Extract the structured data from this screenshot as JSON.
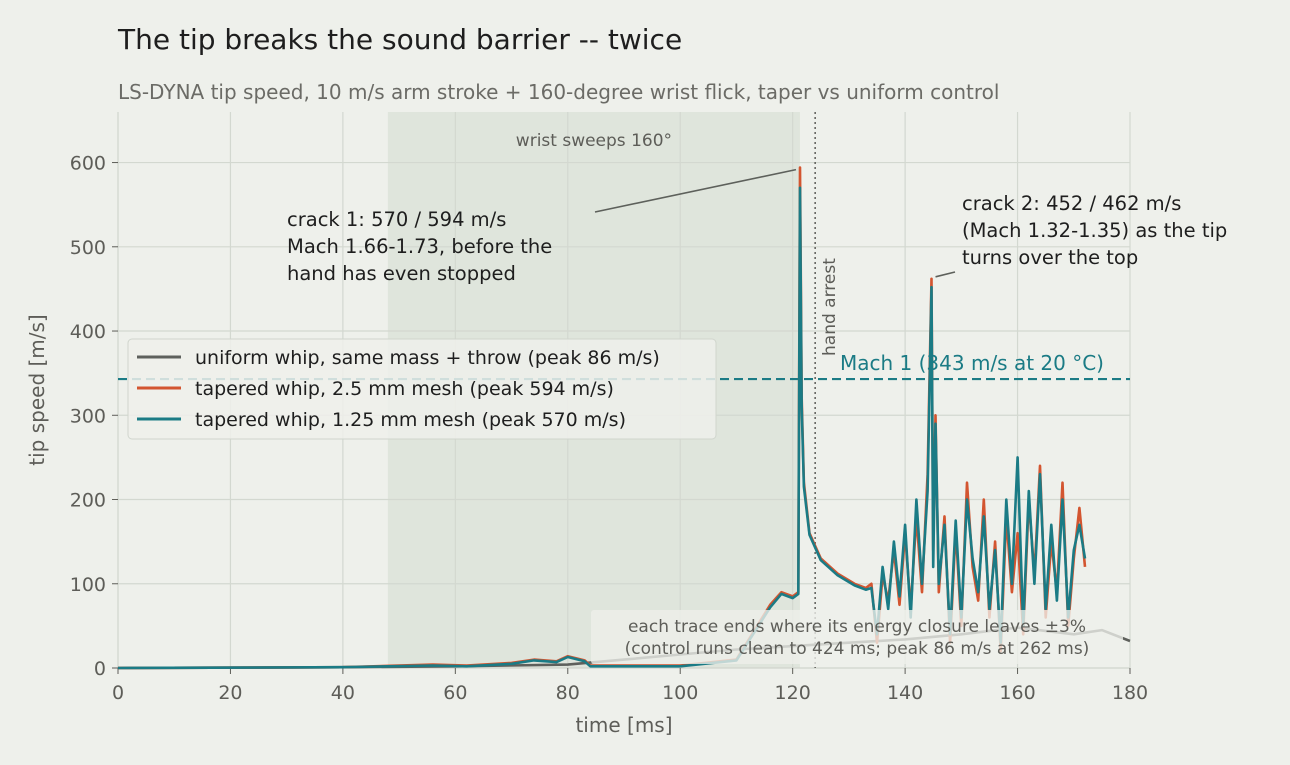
{
  "chart_data": {
    "type": "line",
    "title": "The tip breaks the sound barrier -- twice",
    "subtitle": "LS-DYNA tip speed, 10 m/s arm stroke + 160-degree wrist flick, taper vs uniform control",
    "xlabel": "time  [ms]",
    "ylabel": "tip speed  [m/s]",
    "xlim": [
      0,
      180
    ],
    "ylim": [
      0,
      660
    ],
    "xticks": [
      0,
      20,
      40,
      60,
      80,
      100,
      120,
      140,
      160,
      180
    ],
    "yticks": [
      0,
      100,
      200,
      300,
      400,
      500,
      600
    ],
    "grid": true,
    "legend_position": "center-left",
    "shaded_region": {
      "x": [
        48,
        121.3
      ],
      "label": "wrist sweeps 160°"
    },
    "vline": {
      "x": 124,
      "label": "hand arrest"
    },
    "hline": {
      "y": 343,
      "label": "Mach 1  (343 m/s at 20 °C)",
      "color": "#1b7b85"
    },
    "series": [
      {
        "name": "uniform whip, same mass + throw (peak 86 m/s)",
        "color": "#5e605c",
        "x": [
          0,
          40,
          60,
          80,
          90,
          100,
          110,
          120,
          130,
          140,
          150,
          160,
          170,
          175,
          180
        ],
        "y": [
          0,
          1,
          2,
          4,
          10,
          16,
          22,
          26,
          30,
          34,
          40,
          48,
          40,
          45,
          32
        ]
      },
      {
        "name": "tapered whip, 2.5 mm mesh (peak 594 m/s)",
        "color": "#d35530",
        "x": [
          0,
          40,
          56,
          62,
          70,
          74,
          78,
          80,
          83,
          84,
          100,
          110,
          116,
          118,
          120,
          121,
          121.3,
          121.6,
          122,
          123,
          125,
          128,
          131,
          133,
          134,
          135,
          136,
          137,
          138,
          139,
          140,
          141,
          142,
          143,
          144,
          144.7,
          145,
          145.4,
          146,
          147,
          148,
          149,
          150,
          151,
          152,
          153,
          154,
          155,
          156,
          157,
          158,
          159,
          160,
          161,
          162,
          163,
          164,
          165,
          166,
          167,
          168,
          169,
          170,
          171,
          172
        ],
        "y": [
          0,
          1,
          4,
          3,
          6,
          10,
          8,
          14,
          9,
          3,
          3,
          10,
          75,
          90,
          85,
          90,
          594,
          320,
          220,
          160,
          130,
          112,
          100,
          95,
          100,
          30,
          110,
          80,
          140,
          75,
          160,
          70,
          180,
          90,
          230,
          462,
          140,
          300,
          90,
          180,
          30,
          165,
          50,
          220,
          120,
          80,
          200,
          60,
          150,
          20,
          180,
          90,
          160,
          40,
          200,
          110,
          240,
          60,
          150,
          90,
          220,
          50,
          130,
          190,
          120
        ]
      },
      {
        "name": "tapered whip, 1.25 mm mesh (peak 570 m/s)",
        "color": "#1b7b85",
        "x": [
          0,
          40,
          56,
          62,
          70,
          74,
          78,
          80,
          83,
          84,
          100,
          110,
          116,
          118,
          120,
          121,
          121.3,
          121.6,
          122,
          123,
          125,
          128,
          131,
          133,
          134,
          135,
          136,
          137,
          138,
          139,
          140,
          141,
          142,
          143,
          144,
          144.7,
          145,
          145.4,
          146,
          147,
          148,
          149,
          150,
          151,
          152,
          153,
          154,
          155,
          156,
          157,
          158,
          159,
          160,
          161,
          162,
          163,
          164,
          165,
          166,
          167,
          168,
          169,
          170,
          171,
          172
        ],
        "y": [
          0,
          1,
          3,
          2,
          5,
          9,
          7,
          13,
          8,
          2,
          2,
          9,
          72,
          88,
          83,
          88,
          570,
          310,
          215,
          158,
          128,
          110,
          98,
          93,
          95,
          40,
          120,
          70,
          150,
          85,
          170,
          60,
          200,
          100,
          210,
          452,
          120,
          290,
          100,
          170,
          40,
          175,
          60,
          200,
          130,
          90,
          180,
          70,
          140,
          30,
          200,
          100,
          250,
          50,
          210,
          100,
          230,
          70,
          170,
          80,
          200,
          60,
          140,
          170,
          130
        ]
      }
    ],
    "annotations": [
      {
        "lines": [
          "crack 1: 570 / 594 m/s",
          "Mach 1.66-1.73, before the",
          "hand has even stopped"
        ],
        "x": 121.3,
        "y": 594
      },
      {
        "lines": [
          "crack 2: 452 / 462 m/s",
          "(Mach 1.32-1.35) as the tip",
          "turns over the top"
        ],
        "x": 144.7,
        "y": 462
      },
      {
        "lines": [
          "each trace ends where its energy closure leaves ±3%",
          "(control runs clean to 424 ms; peak 86 m/s at 262 ms)"
        ]
      }
    ]
  }
}
